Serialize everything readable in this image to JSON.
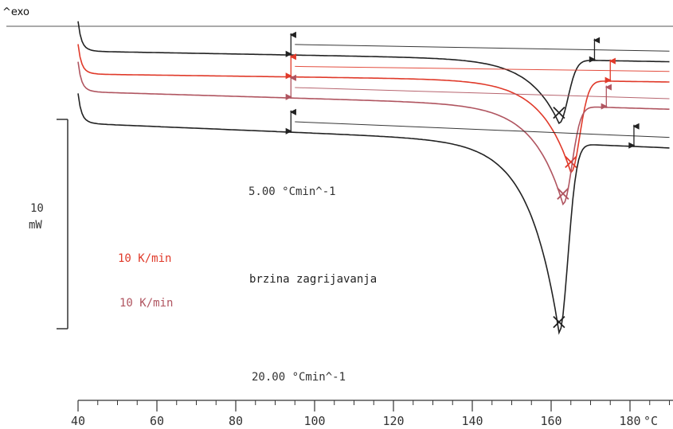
{
  "chart_data": {
    "type": "line",
    "ylabel_top": "^exo",
    "x_unit": "°C",
    "xlim": [
      40,
      190
    ],
    "x_ticks": [
      "40",
      "60",
      "80",
      "100",
      "120",
      "140",
      "160",
      "180"
    ],
    "scale_bar": {
      "value": "10",
      "unit": "mW"
    },
    "annotations": {
      "rate_top": "5.00 °Cmin^-1",
      "rate_red": "10 K/min",
      "rate_mauve": "10 K/min",
      "heating_rate_text": "brzina zagrijavanja",
      "rate_bottom": "20.00 °Cmin^-1"
    },
    "series": [
      {
        "color": "#222222",
        "start_x": 40,
        "baseline_y": [
          -1.0,
          -2.2
        ],
        "peak_x": 162,
        "peak_y": -9.2,
        "end_x": 171
      },
      {
        "color": "#e03a2a",
        "start_x": 40,
        "baseline_y": [
          -3.6,
          -4.5
        ],
        "peak_x": 165,
        "peak_y": -14.8,
        "end_x": 175
      },
      {
        "color": "#b05560",
        "start_x": 40,
        "baseline_y": [
          -5.6,
          -7.6
        ],
        "peak_x": 163,
        "peak_y": -18.4,
        "end_x": 174
      },
      {
        "color": "#222222",
        "start_x": 40,
        "baseline_y": [
          -9.2,
          -12.0
        ],
        "peak_x": 162,
        "peak_y": -33.0,
        "end_x": 181
      }
    ],
    "grid": false
  }
}
